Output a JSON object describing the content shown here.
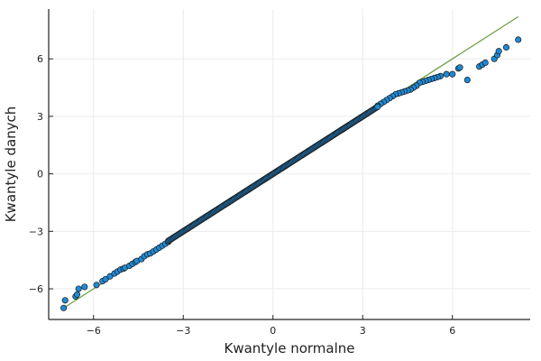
{
  "chart_data": {
    "type": "scatter",
    "title": "",
    "xlabel": "Kwantyle normalne",
    "ylabel": "Kwantyle danych",
    "xlim": [
      -7.5,
      8.6
    ],
    "ylim": [
      -7.6,
      8.6
    ],
    "xticks": [
      -6,
      -3,
      0,
      3,
      6
    ],
    "xtick_labels": [
      "−6",
      "−3",
      "0",
      "3",
      "6"
    ],
    "yticks": [
      -6,
      -3,
      0,
      3,
      6
    ],
    "ytick_labels": [
      "−6",
      "−3",
      "0",
      "3",
      "6"
    ],
    "grid": true,
    "legend": false,
    "colors": {
      "points": "#1f8ad6",
      "reference_line": "#6fa04a"
    },
    "reference_line": {
      "from": [
        -7.0,
        -7.0
      ],
      "to": [
        8.2,
        8.2
      ]
    },
    "series": [
      {
        "points": [
          [
            -7.0,
            -7.0
          ],
          [
            -6.95,
            -6.6
          ],
          [
            -6.6,
            -6.4
          ],
          [
            -6.55,
            -6.3
          ],
          [
            -6.5,
            -6.0
          ],
          [
            -6.3,
            -5.9
          ],
          [
            -5.9,
            -5.8
          ],
          [
            -5.7,
            -5.6
          ],
          [
            -5.6,
            -5.5
          ],
          [
            -5.45,
            -5.35
          ],
          [
            -5.3,
            -5.2
          ],
          [
            -5.2,
            -5.1
          ],
          [
            -5.1,
            -5.0
          ],
          [
            -5.0,
            -4.95
          ],
          [
            -4.95,
            -4.9
          ],
          [
            -4.8,
            -4.8
          ],
          [
            -4.7,
            -4.7
          ],
          [
            -4.6,
            -4.6
          ],
          [
            -4.55,
            -4.55
          ],
          [
            -4.4,
            -4.45
          ],
          [
            -4.3,
            -4.3
          ],
          [
            -4.2,
            -4.2
          ],
          [
            -4.1,
            -4.15
          ],
          [
            -4.0,
            -4.05
          ],
          [
            -3.9,
            -3.95
          ],
          [
            -3.8,
            -3.85
          ],
          [
            -3.7,
            -3.75
          ],
          [
            -3.6,
            -3.65
          ],
          [
            -3.5,
            -3.55
          ],
          [
            6.0,
            5.2
          ],
          [
            6.2,
            5.5
          ],
          [
            6.25,
            5.55
          ],
          [
            6.5,
            4.9
          ],
          [
            6.9,
            5.6
          ],
          [
            7.0,
            5.7
          ],
          [
            7.1,
            5.8
          ],
          [
            7.4,
            6.0
          ],
          [
            7.5,
            6.2
          ],
          [
            7.55,
            6.4
          ],
          [
            7.8,
            6.6
          ],
          [
            8.2,
            7.0
          ],
          [
            5.8,
            5.2
          ],
          [
            5.6,
            5.1
          ],
          [
            5.5,
            5.05
          ],
          [
            5.4,
            5.0
          ],
          [
            5.3,
            4.95
          ],
          [
            5.2,
            4.9
          ],
          [
            5.1,
            4.85
          ],
          [
            5.0,
            4.8
          ],
          [
            4.9,
            4.75
          ],
          [
            4.8,
            4.6
          ],
          [
            4.7,
            4.5
          ],
          [
            4.6,
            4.4
          ],
          [
            4.5,
            4.35
          ],
          [
            4.4,
            4.3
          ],
          [
            4.3,
            4.25
          ],
          [
            4.2,
            4.2
          ],
          [
            4.1,
            4.15
          ],
          [
            4.0,
            4.05
          ],
          [
            3.9,
            3.95
          ],
          [
            3.8,
            3.85
          ],
          [
            3.7,
            3.75
          ],
          [
            3.6,
            3.65
          ],
          [
            3.5,
            3.55
          ]
        ],
        "dense_band": {
          "x_from": -3.5,
          "x_to": 3.5,
          "intercept": 0.0,
          "slope": 1.0
        }
      }
    ]
  }
}
